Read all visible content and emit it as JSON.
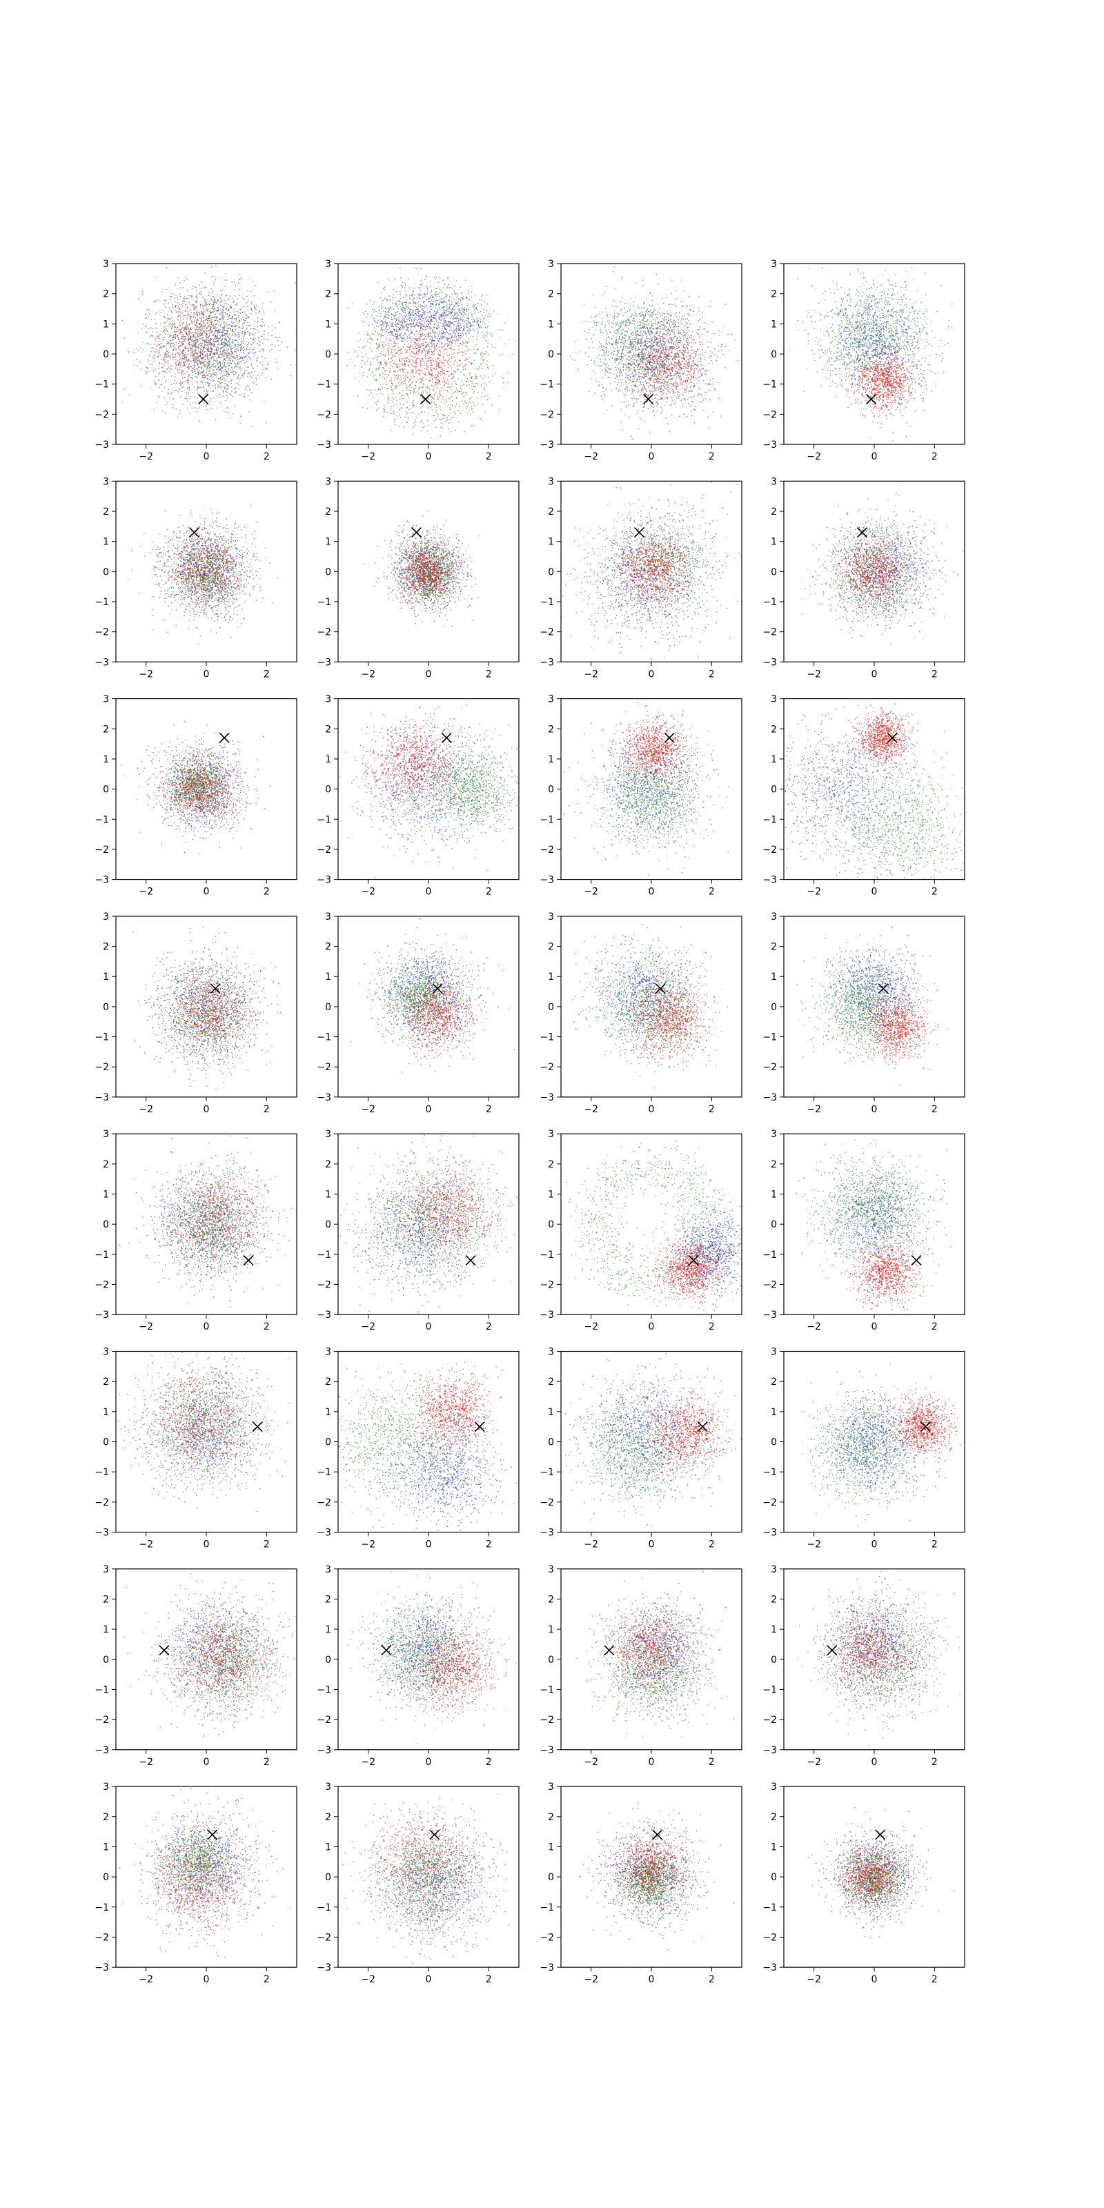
{
  "colors": {
    "red": "#e8120a",
    "green": "#1e8a1e",
    "blue": "#2436d8",
    "marker": "#000000",
    "frame": "#000000"
  },
  "axes_common": {
    "xlim": [
      -3,
      3
    ],
    "ylim": [
      -3,
      3
    ],
    "xticks": [
      -2,
      0,
      2
    ],
    "xtick_labels": [
      "−2",
      "0",
      "2"
    ],
    "yticks": [
      -3,
      -2,
      -1,
      0,
      1,
      2,
      3
    ],
    "ytick_labels": [
      "−3",
      "−2",
      "−1",
      "0",
      "1",
      "2",
      "3"
    ]
  },
  "chart_data": {
    "type": "scatter",
    "layout": "8 rows × 4 columns grid of scatter panels",
    "grid": false,
    "legend": "none",
    "series_colors": [
      "red",
      "green",
      "blue"
    ],
    "marker": "x",
    "rows": [
      {
        "marker": [
          -0.1,
          -1.5
        ],
        "panels": [
          {
            "red": {
              "c": [
                -0.3,
                0.4
              ],
              "s": 0.9,
              "n": 900
            },
            "green": {
              "c": [
                0.1,
                0.3
              ],
              "s": 0.9,
              "n": 900
            },
            "blue": {
              "c": [
                0.3,
                0.3
              ],
              "s": 0.9,
              "n": 900
            }
          },
          {
            "red": {
              "c": [
                -0.1,
                -0.2
              ],
              "s": 0.8,
              "n": 900
            },
            "green": {
              "c": [
                0,
                0
              ],
              "ring": 1.8,
              "n": 900
            },
            "blue": {
              "c": [
                0.3,
                1.4
              ],
              "arc": [
                1.5,
                30,
                150
              ],
              "n": 900
            }
          },
          {
            "red": {
              "c": [
                0.6,
                -0.3
              ],
              "s": 0.7,
              "n": 900
            },
            "green": {
              "c": [
                -0.3,
                0.2
              ],
              "s": 0.8,
              "n": 900
            },
            "blue": {
              "c": [
                0,
                0
              ],
              "s": 0.9,
              "n": 900
            }
          },
          {
            "red": {
              "c": [
                0.4,
                -0.9
              ],
              "s": 0.5,
              "n": 900
            },
            "green": {
              "c": [
                0,
                0.7
              ],
              "s": 0.9,
              "n": 900
            },
            "blue": {
              "c": [
                0,
                0.3
              ],
              "s": 0.8,
              "n": 900
            }
          }
        ]
      },
      {
        "marker": [
          -0.4,
          1.3
        ],
        "panels": [
          {
            "red": {
              "c": [
                0,
                0
              ],
              "s": 0.7,
              "n": 900
            },
            "green": {
              "c": [
                0,
                0
              ],
              "s": 0.6,
              "n": 900
            },
            "blue": {
              "c": [
                0,
                0
              ],
              "s": 0.7,
              "n": 900
            }
          },
          {
            "red": {
              "c": [
                0,
                0
              ],
              "s": 0.5,
              "n": 900
            },
            "green": {
              "c": [
                0,
                0
              ],
              "s": 0.5,
              "n": 900
            },
            "blue": {
              "c": [
                0,
                0
              ],
              "s": 0.6,
              "n": 900
            }
          },
          {
            "red": {
              "c": [
                0,
                0
              ],
              "s": 0.6,
              "n": 900
            },
            "green": {
              "c": [
                0.4,
                0.4
              ],
              "s": 0.9,
              "n": 900
            },
            "blue": {
              "c": [
                -0.3,
                -0.3
              ],
              "s": 1.0,
              "n": 900
            }
          },
          {
            "red": {
              "c": [
                0,
                0
              ],
              "s": 0.6,
              "n": 900
            },
            "green": {
              "c": [
                0,
                0
              ],
              "s": 0.8,
              "n": 900
            },
            "blue": {
              "c": [
                0.3,
                0
              ],
              "s": 0.8,
              "n": 900
            }
          }
        ]
      },
      {
        "marker": [
          0.6,
          1.7
        ],
        "panels": [
          {
            "red": {
              "c": [
                -0.2,
                0
              ],
              "s": 0.6,
              "n": 900
            },
            "green": {
              "c": [
                -0.3,
                0.1
              ],
              "s": 0.5,
              "n": 900
            },
            "blue": {
              "c": [
                -0.1,
                0
              ],
              "s": 0.7,
              "n": 900
            }
          },
          {
            "red": {
              "c": [
                -0.5,
                0.8
              ],
              "s": 0.7,
              "n": 900
            },
            "green": {
              "c": [
                1.5,
                0
              ],
              "s": 0.7,
              "n": 900
            },
            "blue": {
              "c": [
                0,
                0
              ],
              "s": 1.0,
              "n": 900
            }
          },
          {
            "red": {
              "c": [
                0.1,
                1.3
              ],
              "s": 0.5,
              "n": 900
            },
            "green": {
              "c": [
                0,
                -0.2
              ],
              "s": 0.8,
              "n": 900
            },
            "blue": {
              "c": [
                0,
                0
              ],
              "s": 0.9,
              "n": 900
            }
          },
          {
            "red": {
              "c": [
                0.3,
                1.7
              ],
              "s": 0.4,
              "n": 900
            },
            "green": {
              "c": [
                0.9,
                -1.2
              ],
              "s": 1.0,
              "n": 900
            },
            "blue": {
              "c": [
                -1.2,
                0
              ],
              "s": 1.0,
              "n": 900
            }
          }
        ]
      },
      {
        "marker": [
          0.3,
          0.6
        ],
        "panels": [
          {
            "red": {
              "c": [
                0.1,
                -0.2
              ],
              "s": 0.7,
              "n": 900
            },
            "green": {
              "c": [
                0,
                -0.3
              ],
              "s": 0.7,
              "n": 900
            },
            "blue": {
              "c": [
                0,
                -0.1
              ],
              "s": 0.9,
              "n": 900
            }
          },
          {
            "red": {
              "c": [
                0.3,
                -0.3
              ],
              "s": 0.6,
              "n": 900
            },
            "green": {
              "c": [
                -0.3,
                0.3
              ],
              "s": 0.6,
              "n": 900
            },
            "blue": {
              "c": [
                0,
                0.4
              ],
              "s": 0.8,
              "n": 900
            }
          },
          {
            "red": {
              "c": [
                0.6,
                -0.5
              ],
              "s": 0.6,
              "n": 900
            },
            "green": {
              "c": [
                0,
                0
              ],
              "s": 0.8,
              "n": 900
            },
            "blue": {
              "c": [
                -0.3,
                0.4
              ],
              "s": 0.8,
              "n": 900
            }
          },
          {
            "red": {
              "c": [
                0.7,
                -0.7
              ],
              "s": 0.5,
              "n": 900
            },
            "green": {
              "c": [
                -0.4,
                0
              ],
              "s": 0.7,
              "n": 900
            },
            "blue": {
              "c": [
                0,
                0.5
              ],
              "s": 0.7,
              "n": 900
            }
          }
        ]
      },
      {
        "marker": [
          1.4,
          -1.2
        ],
        "panels": [
          {
            "red": {
              "c": [
                0.4,
                0.2
              ],
              "s": 0.8,
              "n": 900
            },
            "green": {
              "c": [
                0.1,
                0
              ],
              "s": 0.7,
              "n": 900
            },
            "blue": {
              "c": [
                0,
                -0.1
              ],
              "s": 0.9,
              "n": 900
            }
          },
          {
            "red": {
              "c": [
                0.7,
                0.5
              ],
              "s": 0.8,
              "n": 900
            },
            "green": {
              "c": [
                0,
                0
              ],
              "s": 0.9,
              "n": 900
            },
            "blue": {
              "c": [
                -0.4,
                -0.2
              ],
              "s": 1.0,
              "n": 900
            }
          },
          {
            "red": {
              "c": [
                1.3,
                -1.5
              ],
              "s": 0.5,
              "n": 900
            },
            "green": {
              "c": [
                0,
                0
              ],
              "ring": 1.9,
              "n": 900
            },
            "blue": {
              "c": [
                2.0,
                -0.9
              ],
              "s": 0.6,
              "n": 900
            }
          },
          {
            "red": {
              "c": [
                0.4,
                -1.6
              ],
              "s": 0.5,
              "n": 900
            },
            "green": {
              "c": [
                0,
                0.5
              ],
              "s": 0.8,
              "n": 900
            },
            "blue": {
              "c": [
                0,
                0.2
              ],
              "s": 0.9,
              "n": 900
            }
          }
        ]
      },
      {
        "marker": [
          1.7,
          0.5
        ],
        "panels": [
          {
            "red": {
              "c": [
                -0.2,
                0.6
              ],
              "s": 0.9,
              "n": 900
            },
            "green": {
              "c": [
                -0.2,
                0.7
              ],
              "s": 0.9,
              "n": 900
            },
            "blue": {
              "c": [
                0,
                0.3
              ],
              "s": 0.9,
              "n": 900
            }
          },
          {
            "red": {
              "c": [
                0.8,
                1.0
              ],
              "s": 0.6,
              "n": 900
            },
            "green": {
              "c": [
                -1.2,
                0
              ],
              "s": 1.0,
              "n": 900
            },
            "blue": {
              "c": [
                0.6,
                -1.0
              ],
              "s": 0.8,
              "n": 900
            }
          },
          {
            "red": {
              "c": [
                1.2,
                0.3
              ],
              "s": 0.6,
              "n": 900
            },
            "green": {
              "c": [
                -0.5,
                -0.3
              ],
              "s": 0.9,
              "n": 900
            },
            "blue": {
              "c": [
                -0.3,
                0.3
              ],
              "s": 0.9,
              "n": 900
            }
          },
          {
            "red": {
              "c": [
                1.6,
                0.5
              ],
              "s": 0.45,
              "n": 900
            },
            "green": {
              "c": [
                -0.3,
                -0.3
              ],
              "s": 0.8,
              "n": 900
            },
            "blue": {
              "c": [
                0,
                0
              ],
              "s": 0.8,
              "n": 900
            }
          }
        ]
      },
      {
        "marker": [
          -1.4,
          0.3
        ],
        "panels": [
          {
            "red": {
              "c": [
                0.5,
                0
              ],
              "s": 0.8,
              "n": 900
            },
            "green": {
              "c": [
                0.7,
                0
              ],
              "s": 0.8,
              "n": 900
            },
            "blue": {
              "c": [
                0.3,
                0.2
              ],
              "s": 0.9,
              "n": 900
            }
          },
          {
            "red": {
              "c": [
                0.8,
                -0.3
              ],
              "s": 0.7,
              "n": 900
            },
            "green": {
              "c": [
                -0.2,
                0.2
              ],
              "s": 0.8,
              "n": 900
            },
            "blue": {
              "c": [
                -0.1,
                0.3
              ],
              "s": 0.8,
              "n": 900
            }
          },
          {
            "red": {
              "c": [
                0,
                0.3
              ],
              "s": 0.7,
              "n": 900
            },
            "green": {
              "c": [
                0,
                -0.3
              ],
              "s": 0.8,
              "n": 900
            },
            "blue": {
              "c": [
                0.3,
                0.3
              ],
              "s": 0.8,
              "n": 900
            }
          },
          {
            "red": {
              "c": [
                -0.1,
                0.2
              ],
              "s": 0.7,
              "n": 900
            },
            "green": {
              "c": [
                0.3,
                0
              ],
              "s": 0.9,
              "n": 900
            },
            "blue": {
              "c": [
                0,
                0.5
              ],
              "s": 0.8,
              "n": 900
            }
          }
        ]
      },
      {
        "marker": [
          0.2,
          1.4
        ],
        "panels": [
          {
            "red": {
              "c": [
                -0.3,
                -0.1
              ],
              "s": 0.8,
              "n": 900
            },
            "green": {
              "c": [
                -0.3,
                0.5
              ],
              "s": 0.6,
              "n": 900
            },
            "blue": {
              "c": [
                0,
                0.3
              ],
              "s": 0.9,
              "n": 900
            }
          },
          {
            "red": {
              "c": [
                -0.2,
                0.3
              ],
              "s": 0.9,
              "n": 900
            },
            "green": {
              "c": [
                0,
                0
              ],
              "s": 0.8,
              "n": 900
            },
            "blue": {
              "c": [
                0.3,
                -0.3
              ],
              "s": 0.9,
              "n": 900
            }
          },
          {
            "red": {
              "c": [
                0,
                0.3
              ],
              "s": 0.6,
              "n": 900
            },
            "green": {
              "c": [
                0,
                -0.1
              ],
              "s": 0.5,
              "n": 900
            },
            "blue": {
              "c": [
                0,
                0
              ],
              "s": 0.8,
              "n": 900
            }
          },
          {
            "red": {
              "c": [
                -0.1,
                0
              ],
              "s": 0.5,
              "n": 900
            },
            "green": {
              "c": [
                0,
                0
              ],
              "s": 0.5,
              "n": 900
            },
            "blue": {
              "c": [
                0,
                0.1
              ],
              "s": 0.7,
              "n": 900
            }
          }
        ]
      }
    ]
  }
}
